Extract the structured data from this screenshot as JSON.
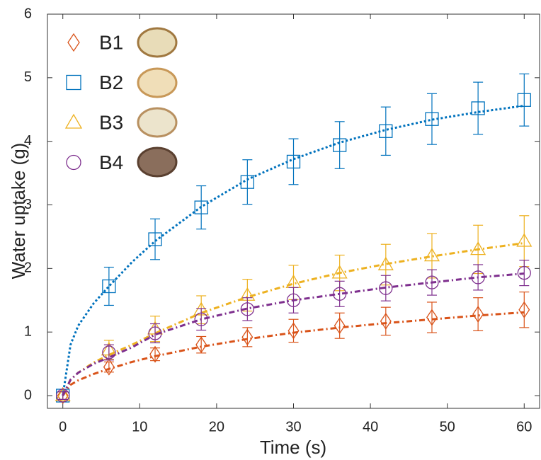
{
  "chart_data": {
    "type": "scatter",
    "x_label": "Time (s)",
    "y_label": "Water uptake (g)",
    "x": [
      0,
      6,
      12,
      18,
      24,
      30,
      36,
      42,
      48,
      54,
      60
    ],
    "fit_x": [
      0,
      1,
      2,
      4,
      6,
      9,
      12,
      18,
      24,
      30,
      36,
      42,
      48,
      54,
      60
    ],
    "xlim": [
      -2,
      62
    ],
    "xticks": [
      0,
      10,
      20,
      30,
      40,
      50,
      60
    ],
    "ylim": [
      -0.2,
      6
    ],
    "yticks": [
      0,
      1,
      2,
      3,
      4,
      5,
      6
    ],
    "legend": "upper left",
    "series": [
      {
        "name": "B1",
        "color": "#d95319",
        "marker": "diamond",
        "dash": "8 4 2 4",
        "values": [
          0,
          0.45,
          0.65,
          0.8,
          0.92,
          1.02,
          1.1,
          1.17,
          1.23,
          1.28,
          1.35
        ],
        "errors": [
          0.06,
          0.08,
          0.1,
          0.13,
          0.15,
          0.18,
          0.2,
          0.22,
          0.24,
          0.26,
          0.28
        ],
        "fit_values": [
          0,
          0.17,
          0.24,
          0.34,
          0.42,
          0.53,
          0.62,
          0.77,
          0.89,
          0.99,
          1.07,
          1.14,
          1.2,
          1.26,
          1.31
        ]
      },
      {
        "name": "B2",
        "color": "#0072bd",
        "marker": "square",
        "dash": "3 3",
        "values": [
          0,
          1.72,
          2.46,
          2.96,
          3.36,
          3.68,
          3.94,
          4.16,
          4.35,
          4.52,
          4.65
        ],
        "errors": [
          0.06,
          0.3,
          0.32,
          0.34,
          0.35,
          0.36,
          0.37,
          0.38,
          0.4,
          0.41,
          0.41
        ],
        "fit_values": [
          0,
          0.8,
          1.1,
          1.45,
          1.72,
          2.1,
          2.43,
          2.97,
          3.4,
          3.72,
          3.98,
          4.18,
          4.34,
          4.46,
          4.56
        ]
      },
      {
        "name": "B3",
        "color": "#edb120",
        "marker": "triangle",
        "dash": "8 4 2 4",
        "values": [
          0,
          0.72,
          1.05,
          1.35,
          1.58,
          1.78,
          1.93,
          2.06,
          2.2,
          2.3,
          2.43
        ],
        "errors": [
          0.06,
          0.15,
          0.2,
          0.22,
          0.25,
          0.27,
          0.28,
          0.32,
          0.35,
          0.38,
          0.4
        ],
        "fit_values": [
          0,
          0.25,
          0.36,
          0.52,
          0.64,
          0.8,
          0.98,
          1.3,
          1.55,
          1.76,
          1.93,
          2.07,
          2.19,
          2.3,
          2.4
        ]
      },
      {
        "name": "B4",
        "color": "#7e2f8e",
        "marker": "circle",
        "dash": "8 4 2 4",
        "values": [
          0,
          0.68,
          0.98,
          1.2,
          1.36,
          1.5,
          1.6,
          1.69,
          1.78,
          1.86,
          1.93
        ],
        "errors": [
          0.06,
          0.12,
          0.15,
          0.17,
          0.18,
          0.2,
          0.2,
          0.2,
          0.2,
          0.2,
          0.2
        ],
        "fit_values": [
          0,
          0.25,
          0.36,
          0.5,
          0.6,
          0.76,
          0.96,
          1.2,
          1.37,
          1.5,
          1.6,
          1.7,
          1.78,
          1.86,
          1.92
        ]
      }
    ]
  }
}
